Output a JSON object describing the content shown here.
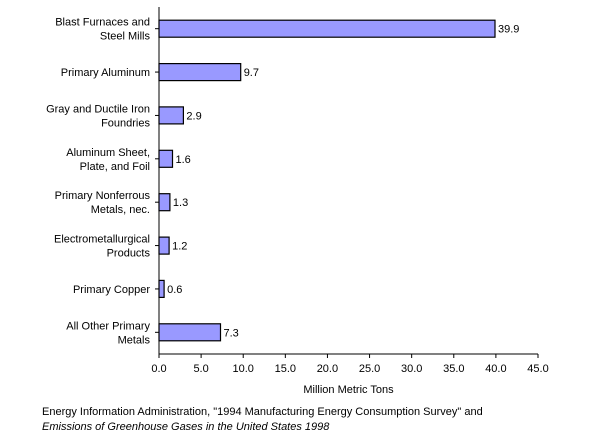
{
  "chart_data": {
    "type": "bar",
    "orientation": "horizontal",
    "categories": [
      [
        "Blast Furnaces and",
        "Steel Mills"
      ],
      [
        "Primary Aluminum"
      ],
      [
        "Gray and Ductile Iron",
        "Foundries"
      ],
      [
        "Aluminum Sheet,",
        "Plate, and Foil"
      ],
      [
        "Primary Nonferrous",
        "Metals, nec."
      ],
      [
        "Electrometallurgical",
        "Products"
      ],
      [
        "Primary Copper"
      ],
      [
        "All Other Primary",
        "Metals"
      ]
    ],
    "values": [
      39.9,
      9.7,
      2.9,
      1.6,
      1.3,
      1.2,
      0.6,
      7.3
    ],
    "value_labels": [
      "39.9",
      "9.7",
      "2.9",
      "1.6",
      "1.3",
      "1.2",
      "0.6",
      "7.3"
    ],
    "xlabel": "Million Metric Tons",
    "xlim": [
      0,
      45
    ],
    "xticks": [
      "0.0",
      "5.0",
      "10.0",
      "15.0",
      "20.0",
      "25.0",
      "30.0",
      "35.0",
      "40.0",
      "45.0"
    ],
    "grid": false,
    "bar_color": "#9999ff",
    "bar_edge_color": "#000000"
  },
  "source": {
    "line1": "Energy Information Administration, \"1994 Manufacturing Energy Consumption Survey\" and",
    "line2": "Emissions of Greenhouse Gases in the United States 1998"
  }
}
